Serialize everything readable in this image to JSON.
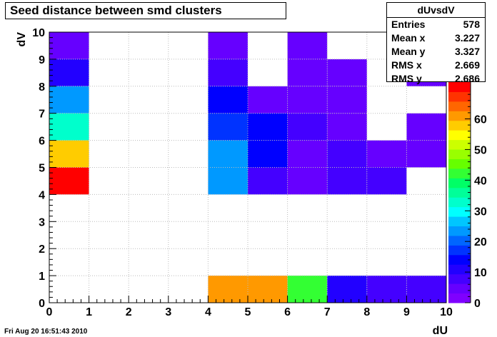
{
  "chart_data": {
    "type": "heatmap",
    "title": "Seed distance between smd clusters",
    "xlabel": "dU",
    "ylabel": "dV",
    "xlim": [
      0,
      10
    ],
    "ylim": [
      0,
      10
    ],
    "x_ticks": [
      "0",
      "1",
      "2",
      "3",
      "4",
      "5",
      "6",
      "7",
      "8",
      "9",
      "10"
    ],
    "y_ticks": [
      "0",
      "1",
      "2",
      "3",
      "4",
      "5",
      "6",
      "7",
      "8",
      "9",
      "10"
    ],
    "z_range": [
      0,
      72
    ],
    "z_ticks": [
      "0",
      "10",
      "20",
      "30",
      "40",
      "50",
      "60"
    ],
    "cells": [
      {
        "x": 0,
        "y": 9,
        "z": 5
      },
      {
        "x": 0,
        "y": 8,
        "z": 10
      },
      {
        "x": 0,
        "y": 7,
        "z": 24
      },
      {
        "x": 0,
        "y": 6,
        "z": 33
      },
      {
        "x": 0,
        "y": 5,
        "z": 58
      },
      {
        "x": 0,
        "y": 4,
        "z": 70
      },
      {
        "x": 4,
        "y": 9,
        "z": 5
      },
      {
        "x": 4,
        "y": 8,
        "z": 7
      },
      {
        "x": 4,
        "y": 7,
        "z": 13
      },
      {
        "x": 4,
        "y": 6,
        "z": 18
      },
      {
        "x": 4,
        "y": 5,
        "z": 24
      },
      {
        "x": 4,
        "y": 4,
        "z": 25
      },
      {
        "x": 4,
        "y": 0,
        "z": 61
      },
      {
        "x": 5,
        "y": 7,
        "z": 5
      },
      {
        "x": 5,
        "y": 6,
        "z": 13
      },
      {
        "x": 5,
        "y": 5,
        "z": 13
      },
      {
        "x": 5,
        "y": 4,
        "z": 8
      },
      {
        "x": 5,
        "y": 0,
        "z": 61
      },
      {
        "x": 6,
        "y": 9,
        "z": 5
      },
      {
        "x": 6,
        "y": 8,
        "z": 5
      },
      {
        "x": 6,
        "y": 7,
        "z": 5
      },
      {
        "x": 6,
        "y": 6,
        "z": 9
      },
      {
        "x": 6,
        "y": 5,
        "z": 5
      },
      {
        "x": 6,
        "y": 4,
        "z": 5
      },
      {
        "x": 6,
        "y": 0,
        "z": 42
      },
      {
        "x": 7,
        "y": 8,
        "z": 5
      },
      {
        "x": 7,
        "y": 7,
        "z": 5
      },
      {
        "x": 7,
        "y": 6,
        "z": 5
      },
      {
        "x": 7,
        "y": 5,
        "z": 7
      },
      {
        "x": 7,
        "y": 4,
        "z": 7
      },
      {
        "x": 7,
        "y": 0,
        "z": 12
      },
      {
        "x": 8,
        "y": 5,
        "z": 5
      },
      {
        "x": 8,
        "y": 4,
        "z": 7
      },
      {
        "x": 8,
        "y": 0,
        "z": 7
      },
      {
        "x": 9,
        "y": 8,
        "z": 5
      },
      {
        "x": 9,
        "y": 6,
        "z": 5
      },
      {
        "x": 9,
        "y": 5,
        "z": 5
      },
      {
        "x": 9,
        "y": 0,
        "z": 7
      }
    ]
  },
  "stats": {
    "name": "dUvsdV",
    "rows": [
      {
        "label": "Entries",
        "value": "578"
      },
      {
        "label": "Mean x",
        "value": "3.227"
      },
      {
        "label": "Mean y",
        "value": "3.327"
      },
      {
        "label": "RMS x",
        "value": "2.669"
      },
      {
        "label": "RMS y",
        "value": "2.686"
      }
    ]
  },
  "footer": {
    "timestamp": "Fri Aug 20 16:51:43 2010"
  },
  "palette": [
    "#7f00ff",
    "#6600ff",
    "#4400ff",
    "#2200ff",
    "#0000ff",
    "#0033ff",
    "#0066ff",
    "#0099ff",
    "#00c6ff",
    "#00ffff",
    "#00ffcc",
    "#00ff99",
    "#00ff66",
    "#33ff33",
    "#66ff00",
    "#99ff00",
    "#ccff00",
    "#ffff00",
    "#ffcc00",
    "#ff9900",
    "#ff6600",
    "#ff3300",
    "#ff0000"
  ]
}
